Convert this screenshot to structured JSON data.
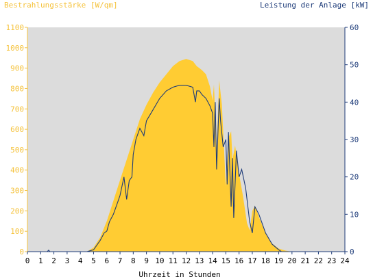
{
  "chart_data": {
    "type": "area",
    "left_axis_label": "Bestrahlungsstärke [W/qm]",
    "right_axis_label": "Leistung der Anlage [kW]",
    "xlabel": "Uhrzeit in Stunden",
    "xlim": [
      0,
      24
    ],
    "left_ylim": [
      0,
      1100
    ],
    "right_ylim": [
      0,
      60
    ],
    "x_ticks": [
      "0",
      "1",
      "2",
      "3",
      "4",
      "5",
      "6",
      "7",
      "8",
      "9",
      "10",
      "11",
      "12",
      "13",
      "14",
      "15",
      "16",
      "17",
      "18",
      "19",
      "20",
      "21",
      "22",
      "23",
      "24"
    ],
    "left_ticks": [
      "0",
      "100",
      "200",
      "300",
      "400",
      "500",
      "600",
      "700",
      "800",
      "900",
      "1000",
      "1100"
    ],
    "right_ticks": [
      "0",
      "10",
      "20",
      "30",
      "40",
      "50",
      "60"
    ],
    "colors": {
      "plot_background": "#dcdcdc",
      "irradiance_fill": "#ffcc33",
      "power_line": "#1c3a78",
      "left_axis": "#f5c23b",
      "right_axis": "#1c3a78"
    },
    "series": [
      {
        "name": "Bestrahlungsstärke [W/qm]",
        "axis": "left",
        "style": "area",
        "x": [
          0,
          4.5,
          5.0,
          5.5,
          6.0,
          6.5,
          7.0,
          7.5,
          8.0,
          8.5,
          9.0,
          9.5,
          10.0,
          10.5,
          11.0,
          11.5,
          12.0,
          12.5,
          12.8,
          13.0,
          13.2,
          13.5,
          13.8,
          14.0,
          14.1,
          14.3,
          14.5,
          14.7,
          15.0,
          15.2,
          15.4,
          15.5,
          15.7,
          16.0,
          16.3,
          16.6,
          16.8,
          17.0,
          17.2,
          17.5,
          18.0,
          18.5,
          19.0,
          19.5,
          20.0,
          24.0
        ],
        "values": [
          0,
          0,
          20,
          70,
          150,
          250,
          350,
          450,
          550,
          650,
          720,
          780,
          830,
          870,
          910,
          935,
          945,
          935,
          910,
          900,
          890,
          870,
          810,
          740,
          820,
          500,
          840,
          720,
          320,
          560,
          590,
          450,
          520,
          380,
          270,
          140,
          105,
          200,
          225,
          170,
          90,
          40,
          15,
          5,
          0,
          0
        ]
      },
      {
        "name": "Leistung der Anlage [kW]",
        "axis": "right",
        "style": "line",
        "x": [
          0,
          1.5,
          1.6,
          1.7,
          4.5,
          5.0,
          5.5,
          5.8,
          6.0,
          6.2,
          6.5,
          6.8,
          7.0,
          7.3,
          7.5,
          7.7,
          7.9,
          8.0,
          8.2,
          8.5,
          8.8,
          9.0,
          9.5,
          10.0,
          10.5,
          11.0,
          11.5,
          12.0,
          12.5,
          12.7,
          12.8,
          13.0,
          13.2,
          13.5,
          13.8,
          14.0,
          14.1,
          14.2,
          14.3,
          14.5,
          14.6,
          14.8,
          15.0,
          15.1,
          15.2,
          15.4,
          15.5,
          15.6,
          15.8,
          16.0,
          16.2,
          16.5,
          16.8,
          17.0,
          17.2,
          17.5,
          18.0,
          18.5,
          19.0,
          19.2,
          19.5,
          24.0
        ],
        "values": [
          0,
          0,
          0.4,
          0,
          0,
          0.5,
          3,
          5,
          5.5,
          8,
          10,
          13,
          15,
          20,
          14,
          19,
          20,
          26,
          30,
          33,
          31,
          35,
          38,
          41,
          43,
          44,
          44.5,
          44.5,
          44,
          40,
          43,
          43,
          42,
          41,
          39,
          37,
          28,
          40,
          22,
          41,
          35,
          28,
          30,
          18,
          32,
          12,
          25,
          9,
          27,
          20,
          22,
          17,
          8,
          5,
          12,
          10,
          5,
          2,
          0.5,
          0,
          0,
          0
        ]
      }
    ]
  }
}
